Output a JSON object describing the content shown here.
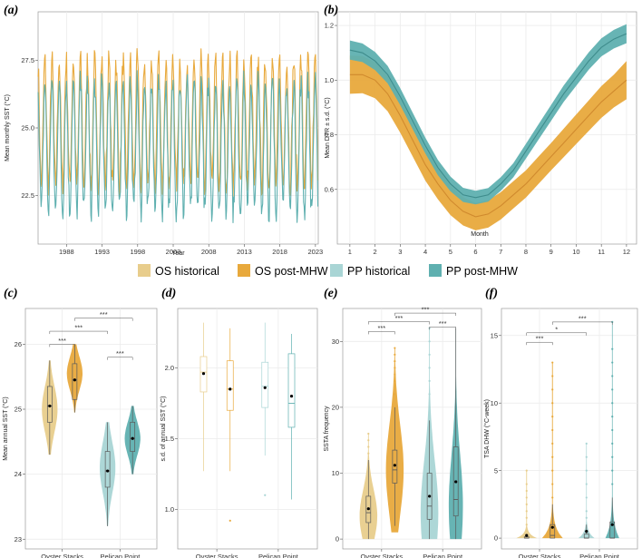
{
  "colors": {
    "os_hist": "#E8CD8C",
    "os_post": "#E8A93C",
    "pp_hist": "#A9D5D5",
    "pp_post": "#5FB0B0",
    "os_line": "#D08A2E",
    "pp_line": "#3E8C8C",
    "grid": "#EBEBEB"
  },
  "legend": [
    {
      "label": "OS historical",
      "color_key": "os_hist"
    },
    {
      "label": "OS post-MHW",
      "color_key": "os_post"
    },
    {
      "label": "PP historical",
      "color_key": "pp_hist"
    },
    {
      "label": "PP post-MHW",
      "color_key": "pp_post"
    }
  ],
  "chart_data": [
    {
      "panel": "(a)",
      "type": "line",
      "xlabel": "Year",
      "ylabel": "Mean monthly SST (°C)",
      "xlim": [
        1984.0,
        2023.4
      ],
      "ylim": [
        20.7,
        29.3
      ],
      "x_ticks": [
        1988,
        1993,
        1998,
        2003,
        2008,
        2013,
        2018,
        2023
      ],
      "y_ticks": [
        22.5,
        25.0,
        27.5
      ],
      "series": [
        {
          "site": "OS",
          "color_key": "os_post",
          "start_year": 1984.0,
          "end_year": 2023.3,
          "mean": 25.2,
          "amplitude": 2.3,
          "min_value": 22.3,
          "max_value": 28.8,
          "noise": 0.5
        },
        {
          "site": "PP",
          "color_key": "pp_post",
          "start_year": 1984.0,
          "end_year": 2023.3,
          "mean": 24.3,
          "amplitude": 2.4,
          "min_value": 21.0,
          "max_value": 27.6,
          "noise": 0.5
        }
      ]
    },
    {
      "panel": "(b)",
      "type": "line",
      "xlabel": "Month",
      "ylabel": "Mean DTR ± s.d. (°C)",
      "xlim": [
        0.5,
        12.4
      ],
      "ylim": [
        0.4,
        1.25
      ],
      "x_ticks": [
        1,
        2,
        3,
        4,
        5,
        6,
        7,
        8,
        9,
        10,
        11,
        12
      ],
      "y_ticks": [
        0.6,
        0.8,
        1.0,
        1.2
      ],
      "series": [
        {
          "site": "OS",
          "color_key": "os_post",
          "line_color_key": "os_line",
          "x": [
            1,
            1.5,
            2,
            2.5,
            3,
            3.5,
            4,
            4.5,
            5,
            5.5,
            6,
            6.5,
            7,
            7.5,
            8,
            8.5,
            9,
            9.5,
            10,
            10.5,
            11,
            11.5,
            12
          ],
          "y": [
            1.02,
            1.02,
            1.0,
            0.95,
            0.87,
            0.78,
            0.69,
            0.62,
            0.56,
            0.52,
            0.5,
            0.51,
            0.54,
            0.58,
            0.62,
            0.67,
            0.72,
            0.77,
            0.82,
            0.87,
            0.92,
            0.96,
            1.0
          ],
          "sd": [
            0.07,
            0.068,
            0.066,
            0.064,
            0.062,
            0.06,
            0.058,
            0.056,
            0.054,
            0.052,
            0.05,
            0.05,
            0.05,
            0.05,
            0.05,
            0.05,
            0.05,
            0.052,
            0.054,
            0.056,
            0.058,
            0.06,
            0.07
          ]
        },
        {
          "site": "PP",
          "color_key": "pp_post",
          "line_color_key": "pp_line",
          "x": [
            1,
            1.5,
            2,
            2.5,
            3,
            3.5,
            4,
            4.5,
            5,
            5.5,
            6,
            6.5,
            7,
            7.5,
            8,
            8.5,
            9,
            9.5,
            10,
            10.5,
            11,
            11.5,
            12
          ],
          "y": [
            1.11,
            1.1,
            1.07,
            1.02,
            0.94,
            0.85,
            0.76,
            0.68,
            0.62,
            0.58,
            0.57,
            0.58,
            0.62,
            0.67,
            0.74,
            0.81,
            0.88,
            0.95,
            1.01,
            1.07,
            1.12,
            1.15,
            1.17
          ],
          "sd": [
            0.035,
            0.034,
            0.033,
            0.032,
            0.031,
            0.03,
            0.029,
            0.028,
            0.027,
            0.026,
            0.025,
            0.025,
            0.025,
            0.026,
            0.027,
            0.028,
            0.029,
            0.03,
            0.031,
            0.032,
            0.033,
            0.034,
            0.035
          ]
        }
      ]
    },
    {
      "panel": "(c)",
      "type": "violin",
      "ylabel": "Mean annual SST (°C)",
      "ylim": [
        22.85,
        26.55
      ],
      "y_ticks": [
        23,
        24,
        25,
        26
      ],
      "x_ticks": [
        "Oyster Stacks",
        "Pelican Point"
      ],
      "groups": [
        {
          "site_index": 0,
          "color_key": "os_hist",
          "ymin": 24.3,
          "ymax": 25.75,
          "q1": 24.8,
          "median": 25.05,
          "q3": 25.35,
          "wlo": 24.3,
          "whi": 25.75,
          "mean": 25.05,
          "peak": 25.0,
          "width": 0.7
        },
        {
          "site_index": 0,
          "color_key": "os_post",
          "ymin": 24.95,
          "ymax": 26.0,
          "q1": 25.15,
          "median": 25.45,
          "q3": 25.7,
          "wlo": 24.95,
          "whi": 26.0,
          "mean": 25.45,
          "peak": 25.55,
          "width": 0.7
        },
        {
          "site_index": 1,
          "color_key": "pp_hist",
          "ymin": 23.2,
          "ymax": 24.8,
          "q1": 23.8,
          "median": 24.05,
          "q3": 24.35,
          "wlo": 23.2,
          "whi": 24.8,
          "mean": 24.05,
          "peak": 24.1,
          "width": 0.7
        },
        {
          "site_index": 1,
          "color_key": "pp_post",
          "ymin": 24.0,
          "ymax": 25.05,
          "q1": 24.35,
          "median": 24.55,
          "q3": 24.8,
          "wlo": 24.0,
          "whi": 25.05,
          "mean": 24.55,
          "peak": 24.55,
          "width": 0.7
        }
      ],
      "brackets": [
        {
          "a": 0,
          "b": 1,
          "y": 26.0,
          "label": "***"
        },
        {
          "a": 0,
          "b": 2,
          "y": 26.2,
          "label": "***"
        },
        {
          "a": 1,
          "b": 3,
          "y": 26.4,
          "label": "***"
        },
        {
          "a": 2,
          "b": 3,
          "y": 25.8,
          "label": "***"
        }
      ]
    },
    {
      "panel": "(d)",
      "type": "box",
      "ylabel": "s.d. of annual SST (°C)",
      "ylim": [
        0.72,
        2.42
      ],
      "y_ticks": [
        1.0,
        1.5,
        2.0
      ],
      "x_ticks": [
        "Oyster Stacks",
        "Pelican Point"
      ],
      "groups": [
        {
          "site_index": 0,
          "color_key": "os_hist",
          "q1": 1.83,
          "median": 1.97,
          "q3": 2.08,
          "wlo": 1.27,
          "whi": 2.32,
          "mean": 1.96,
          "outliers": []
        },
        {
          "site_index": 0,
          "color_key": "os_post",
          "q1": 1.7,
          "median": 1.85,
          "q3": 2.05,
          "wlo": 1.27,
          "whi": 2.28,
          "mean": 1.85,
          "outliers": [
            0.92
          ]
        },
        {
          "site_index": 1,
          "color_key": "pp_hist",
          "q1": 1.72,
          "median": 1.87,
          "q3": 2.04,
          "wlo": 1.38,
          "whi": 2.32,
          "mean": 1.86,
          "outliers": [
            1.1
          ]
        },
        {
          "site_index": 1,
          "color_key": "pp_post",
          "q1": 1.58,
          "median": 1.75,
          "q3": 2.1,
          "wlo": 1.07,
          "whi": 2.24,
          "mean": 1.8,
          "outliers": []
        }
      ]
    },
    {
      "panel": "(e)",
      "type": "violin",
      "ylabel": "SSTA frequency",
      "ylim": [
        -1.5,
        35
      ],
      "y_ticks": [
        0,
        10,
        20,
        30
      ],
      "x_ticks": [
        "Oyster Stacks",
        "Pelican Point"
      ],
      "groups": [
        {
          "site_index": 0,
          "color_key": "os_hist",
          "ymin": 0,
          "ymax": 16,
          "q1": 2.5,
          "median": 4,
          "q3": 6.5,
          "wlo": 0,
          "whi": 12,
          "mean": 4.6,
          "peak": 3.5,
          "width": 0.75,
          "outliers": [
            13,
            14,
            15,
            16
          ]
        },
        {
          "site_index": 0,
          "color_key": "os_post",
          "ymin": 1,
          "ymax": 29,
          "q1": 8.5,
          "median": 10.5,
          "q3": 13.5,
          "wlo": 2,
          "whi": 20,
          "mean": 11.2,
          "peak": 10.5,
          "width": 0.75,
          "outliers": [
            22,
            24,
            25,
            26,
            27,
            28,
            29
          ]
        },
        {
          "site_index": 1,
          "color_key": "pp_hist",
          "ymin": 0,
          "ymax": 32,
          "q1": 3,
          "median": 5,
          "q3": 10,
          "wlo": 0,
          "whi": 18,
          "mean": 6.5,
          "peak": 4,
          "width": 0.75,
          "outliers": [
            20,
            22,
            24,
            26,
            28,
            30,
            32
          ]
        },
        {
          "site_index": 1,
          "color_key": "pp_post",
          "ymin": 0,
          "ymax": 32,
          "q1": 3.5,
          "median": 6,
          "q3": 14,
          "wlo": 0,
          "whi": 32,
          "mean": 8.7,
          "peak": 5,
          "width": 0.6,
          "outliers": []
        }
      ],
      "brackets": [
        {
          "a": 0,
          "b": 1,
          "y": 31.5,
          "label": "***"
        },
        {
          "a": 0,
          "b": 2,
          "y": 33.0,
          "label": "***"
        },
        {
          "a": 1,
          "b": 3,
          "y": 34.3,
          "label": "***"
        },
        {
          "a": 2,
          "b": 3,
          "y": 32.2,
          "label": "***"
        }
      ]
    },
    {
      "panel": "(f)",
      "type": "violin",
      "ylabel": "TSA DHW  (°C-week)",
      "ylim": [
        -0.8,
        17
      ],
      "y_ticks": [
        0,
        5,
        10,
        15
      ],
      "x_ticks": [
        "Oyster Stacks",
        "Pelican Point"
      ],
      "groups": [
        {
          "site_index": 0,
          "color_key": "os_hist",
          "ymin": 0,
          "ymax": 5,
          "q1": 0,
          "median": 0,
          "q3": 0.1,
          "wlo": 0,
          "whi": 0.3,
          "mean": 0.2,
          "peak": 0.02,
          "width": 0.9,
          "outliers": [
            0.5,
            1,
            1.5,
            2,
            2.5,
            3,
            3.5,
            4,
            5
          ]
        },
        {
          "site_index": 0,
          "color_key": "os_post",
          "ymin": 0,
          "ymax": 13,
          "q1": 0,
          "median": 0.2,
          "q3": 1.0,
          "wlo": 0,
          "whi": 2.5,
          "mean": 0.8,
          "peak": 0.05,
          "width": 0.9,
          "outliers": [
            3,
            4,
            5,
            6,
            7,
            8,
            9,
            10,
            11,
            12,
            13
          ]
        },
        {
          "site_index": 1,
          "color_key": "pp_hist",
          "ymin": 0,
          "ymax": 7,
          "q1": 0,
          "median": 0,
          "q3": 0.3,
          "wlo": 0,
          "whi": 1,
          "mean": 0.5,
          "peak": 0.05,
          "width": 0.7,
          "outliers": [
            1.5,
            2,
            3,
            4,
            5,
            6,
            7
          ]
        },
        {
          "site_index": 1,
          "color_key": "pp_post",
          "ymin": 0,
          "ymax": 16,
          "q1": 0,
          "median": 0,
          "q3": 1.2,
          "wlo": 0,
          "whi": 3,
          "mean": 1.0,
          "peak": 0.05,
          "width": 0.6,
          "outliers": [
            4,
            5,
            6,
            7,
            8,
            9,
            10,
            11,
            12,
            13,
            14,
            16
          ]
        }
      ],
      "brackets": [
        {
          "a": 0,
          "b": 1,
          "y": 14.5,
          "label": "***"
        },
        {
          "a": 0,
          "b": 2,
          "y": 15.2,
          "label": "*"
        },
        {
          "a": 1,
          "b": 3,
          "y": 16.0,
          "label": "***"
        }
      ]
    }
  ]
}
